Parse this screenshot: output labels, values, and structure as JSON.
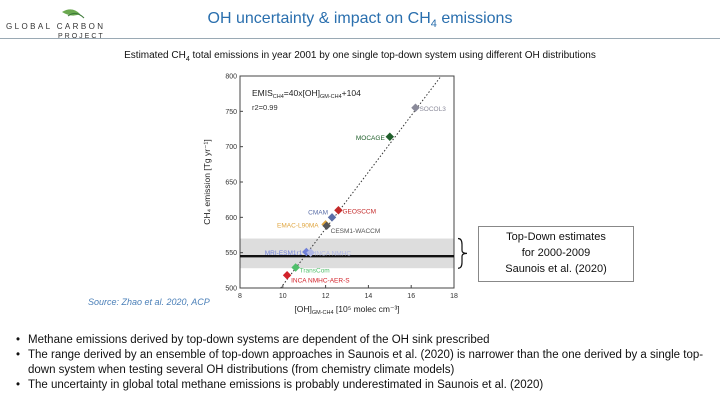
{
  "logo": {
    "line1": "GLOBAL CARBON",
    "line2": "PROJECT"
  },
  "header": {
    "title_main": "OH uncertainty & impact on CH",
    "title_sub": "4",
    "title_tail": " emissions"
  },
  "subtitle": {
    "pre": "Estimated CH",
    "sub": "4",
    "post": " total emissions in year 2001 by one single top-down system using different OH distributions"
  },
  "source": "Source: Zhao et al. 2020, ACP",
  "callout": {
    "line1": "Top-Down estimates",
    "line2": "for 2000-2009",
    "line3": "Saunois et al. (2020)"
  },
  "bullets": [
    "Methane emissions derived by top-down  systems are dependent of the OH sink prescribed",
    "The range derived by an ensemble of top-down approaches in Saunois et al. (2020) is narrower than the one derived by a single top-down system when  testing several OH distributions (from chemistry climate models)",
    "The uncertainty in global total methane emissions is probably underestimated in Saunois et al. (2020)"
  ],
  "chart_data": {
    "type": "scatter",
    "xlabel": "[OH]",
    "xlabel_sub": "GM-CH4",
    "xlabel_unit": " [10⁵ molec cm⁻³]",
    "ylabel": "CH₄ emission [Tg yr⁻¹]",
    "xlim": [
      8,
      18
    ],
    "ylim": [
      500,
      800
    ],
    "xticks": [
      8,
      10,
      12,
      14,
      16,
      18
    ],
    "yticks": [
      500,
      550,
      600,
      650,
      700,
      750,
      800
    ],
    "equation": "EMIS",
    "equation_sub": "CH4",
    "equation_mid": "=40x[OH]",
    "equation_sub2": "GM-CH4",
    "equation_tail": "+104",
    "r2": "r2=0.99",
    "fit": {
      "slope": 40,
      "intercept": 104
    },
    "band": {
      "ymin": 528,
      "ymax": 570,
      "color": "#dddddd"
    },
    "hline": {
      "y": 545,
      "color": "#111111"
    },
    "points": [
      {
        "label": "SOCOL3",
        "x": 16.2,
        "y": 755,
        "color": "#8a8a9a"
      },
      {
        "label": "MOCAGE",
        "x": 15.0,
        "y": 714,
        "color": "#1f5e2a"
      },
      {
        "label": "GEOSCCM",
        "x": 12.6,
        "y": 610,
        "color": "#c42a2a"
      },
      {
        "label": "CMAM",
        "x": 12.3,
        "y": 600,
        "color": "#5b6fa8"
      },
      {
        "label": "EMAC-L90MA",
        "x": 12.0,
        "y": 590,
        "color": "#e0a640"
      },
      {
        "label": "CESM1-WACCM",
        "x": 12.05,
        "y": 588,
        "color": "#555555"
      },
      {
        "label": "MRI-ESM1r1",
        "x": 11.1,
        "y": 551,
        "color": "#6f7fd8"
      },
      {
        "label": "INCA NMHC",
        "x": 11.3,
        "y": 550,
        "color": "#b1b8e6"
      },
      {
        "label": "TransCom",
        "x": 10.6,
        "y": 529,
        "color": "#4fbf6a"
      },
      {
        "label": "INCA NMHC-AER-S",
        "x": 10.2,
        "y": 518,
        "color": "#d2222a"
      }
    ],
    "colors": {
      "title": "#2a6fae",
      "source": "#4a7fb8"
    }
  }
}
